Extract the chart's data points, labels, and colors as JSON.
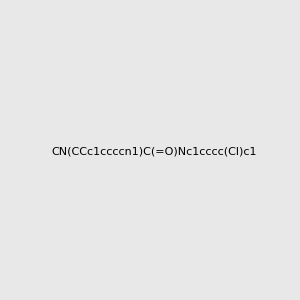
{
  "smiles": "CN(CCc1ccccn1)C(=O)Nc1cccc(Cl)c1",
  "background_color": "#e8e8e8",
  "bond_color": "#2d5a27",
  "nitrogen_color": "#0000ff",
  "oxygen_color": "#ff0000",
  "chlorine_color": "#2d5a27",
  "title": "",
  "figsize": [
    3.0,
    3.0
  ],
  "dpi": 100
}
